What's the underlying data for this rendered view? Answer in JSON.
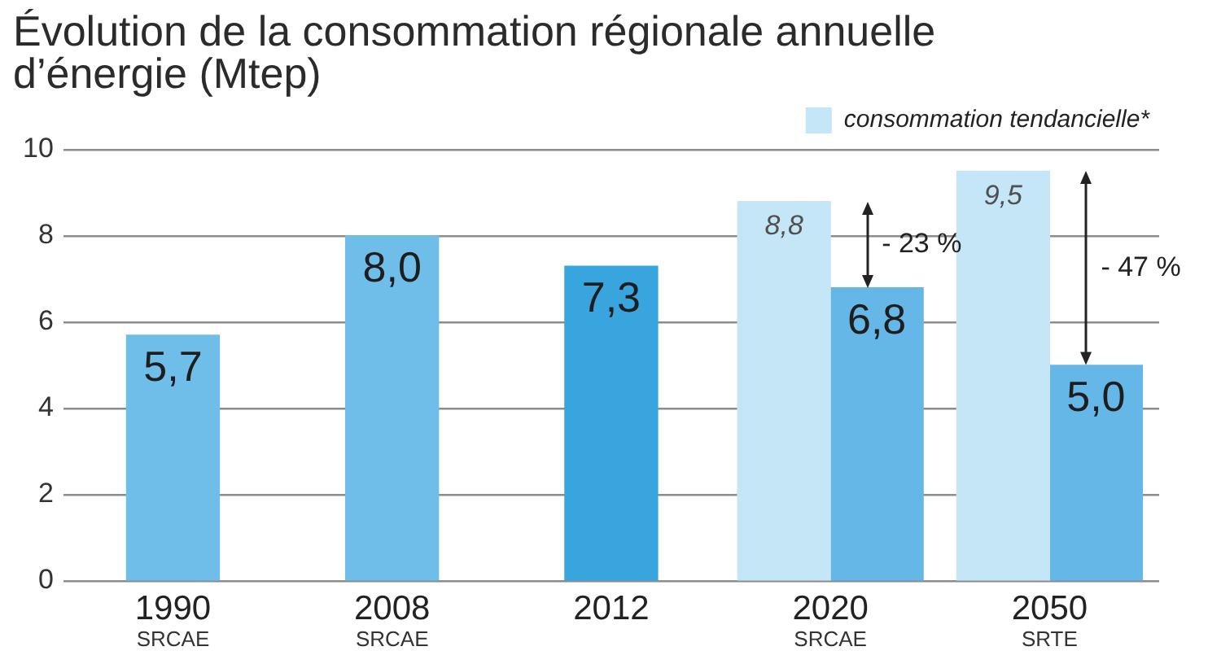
{
  "chart_data": {
    "type": "bar",
    "title": "Évolution de la consommation régionale annuelle\nd’énergie (Mtep)",
    "categories": [
      "1990\nSRCAE",
      "2008\nSRCAE",
      "2012",
      "2020\nSRCAE",
      "2050\nSRTE"
    ],
    "series": [
      {
        "name": "consommation tendancielle*",
        "color": "#c4e6f7",
        "values": [
          null,
          null,
          null,
          8.8,
          9.5
        ],
        "value_labels": [
          null,
          null,
          null,
          "8,8",
          "9,5"
        ]
      },
      {
        "colors": [
          "#6fbeea",
          "#6fbeea",
          "#38a5de",
          "#65b7e7",
          "#65b7e7"
        ],
        "values": [
          5.7,
          8.0,
          7.3,
          6.8,
          5.0
        ],
        "value_labels": [
          "5,7",
          "8,0",
          "7,3",
          "6,8",
          "5,0"
        ]
      }
    ],
    "ylim": [
      0,
      10
    ],
    "yticks": [
      0,
      2,
      4,
      6,
      8,
      10
    ],
    "grid": "y",
    "legend": "top right",
    "annotations": [
      {
        "text": "- 23 %",
        "x": "2020\nSRCAE",
        "y": 7.8
      },
      {
        "text": "- 47 %",
        "x": "2050\nSRTE",
        "y": 7.25
      }
    ]
  }
}
